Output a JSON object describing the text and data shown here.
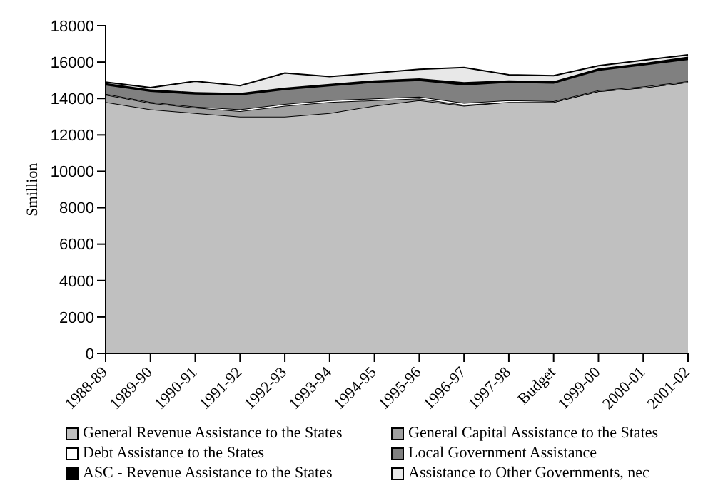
{
  "chart_data": {
    "type": "area",
    "stacked": true,
    "ylabel": "$million",
    "categories": [
      "1988-89",
      "1989-90",
      "1990-91",
      "1991-92",
      "1992-93",
      "1993-94",
      "1994-95",
      "1995-96",
      "1996-97",
      "1997-98",
      "Budget",
      "1999-00",
      "2000-01",
      "2001-02"
    ],
    "ylim": [
      0,
      18000
    ],
    "yticks": [
      0,
      2000,
      4000,
      6000,
      8000,
      10000,
      12000,
      14000,
      16000,
      18000
    ],
    "grid": false,
    "legend": "bottom",
    "series": [
      {
        "name": "General Revenue Assistance to the States",
        "color": "#c0c0c0",
        "values": [
          13800,
          13400,
          13200,
          13000,
          13000,
          13200,
          13600,
          13900,
          13600,
          13800,
          13800,
          14400,
          14600,
          14900
        ]
      },
      {
        "name": "General Capital Assistance to the States",
        "color": "#a0a0a0",
        "values": [
          400,
          350,
          300,
          300,
          600,
          600,
          300,
          100,
          50,
          0,
          0,
          0,
          0,
          0
        ]
      },
      {
        "name": "Debt Assistance to the States",
        "color": "#ffffff",
        "values": [
          50,
          50,
          50,
          100,
          100,
          100,
          100,
          100,
          100,
          100,
          50,
          50,
          50,
          50
        ]
      },
      {
        "name": "Local Government Assistance",
        "color": "#808080",
        "values": [
          500,
          600,
          700,
          800,
          800,
          800,
          900,
          900,
          1000,
          1000,
          1000,
          1100,
          1200,
          1200
        ]
      },
      {
        "name": "ASC - Revenue Assistance to the States",
        "color": "#000000",
        "values": [
          100,
          100,
          100,
          100,
          100,
          100,
          100,
          100,
          150,
          100,
          100,
          100,
          100,
          150
        ]
      },
      {
        "name": "Assistance to Other Governments, nec",
        "color": "#e8e8e8",
        "values": [
          50,
          100,
          600,
          400,
          800,
          400,
          400,
          500,
          800,
          300,
          300,
          150,
          150,
          100
        ]
      }
    ]
  }
}
